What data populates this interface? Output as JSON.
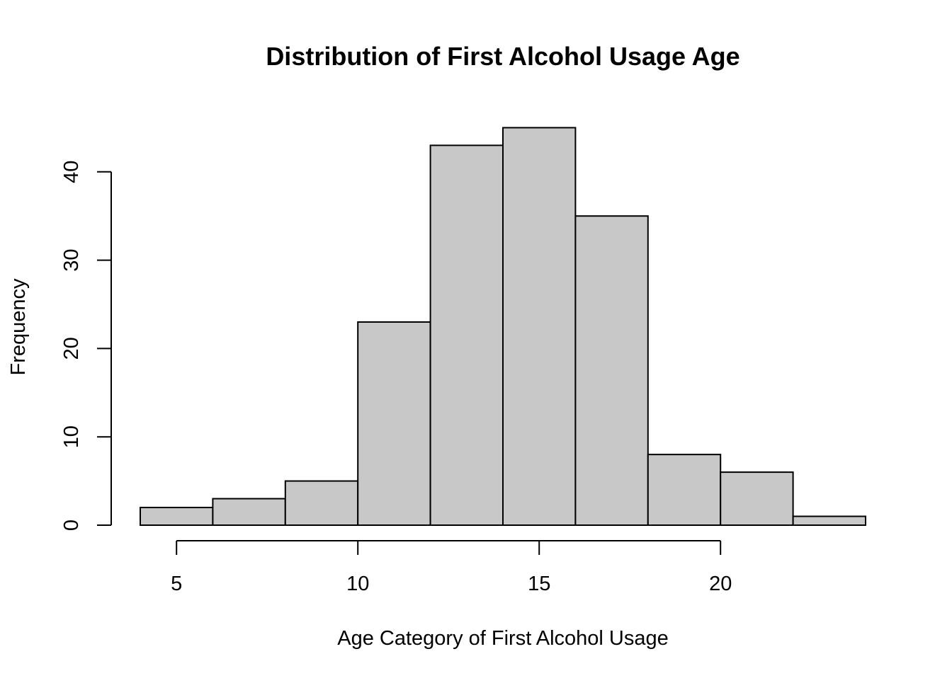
{
  "chart_data": {
    "type": "bar",
    "subtype": "histogram",
    "title": "Distribution of First Alcohol Usage Age",
    "xlabel": "Age Category of First Alcohol Usage",
    "ylabel": "Frequency",
    "bins": [
      {
        "from": 4,
        "to": 6,
        "count": 2
      },
      {
        "from": 6,
        "to": 8,
        "count": 3
      },
      {
        "from": 8,
        "to": 10,
        "count": 5
      },
      {
        "from": 10,
        "to": 12,
        "count": 23
      },
      {
        "from": 12,
        "to": 14,
        "count": 43
      },
      {
        "from": 14,
        "to": 16,
        "count": 45
      },
      {
        "from": 16,
        "to": 18,
        "count": 35
      },
      {
        "from": 18,
        "to": 20,
        "count": 8
      },
      {
        "from": 20,
        "to": 22,
        "count": 6
      },
      {
        "from": 22,
        "to": 24,
        "count": 1
      }
    ],
    "xticks": [
      5,
      10,
      15,
      20
    ],
    "yticks": [
      0,
      10,
      20,
      30,
      40
    ],
    "xlim": [
      4,
      24
    ],
    "ylim": [
      0,
      45
    ],
    "grid": false,
    "bar_fill": "#c8c8c8",
    "bar_stroke": "#000000"
  }
}
